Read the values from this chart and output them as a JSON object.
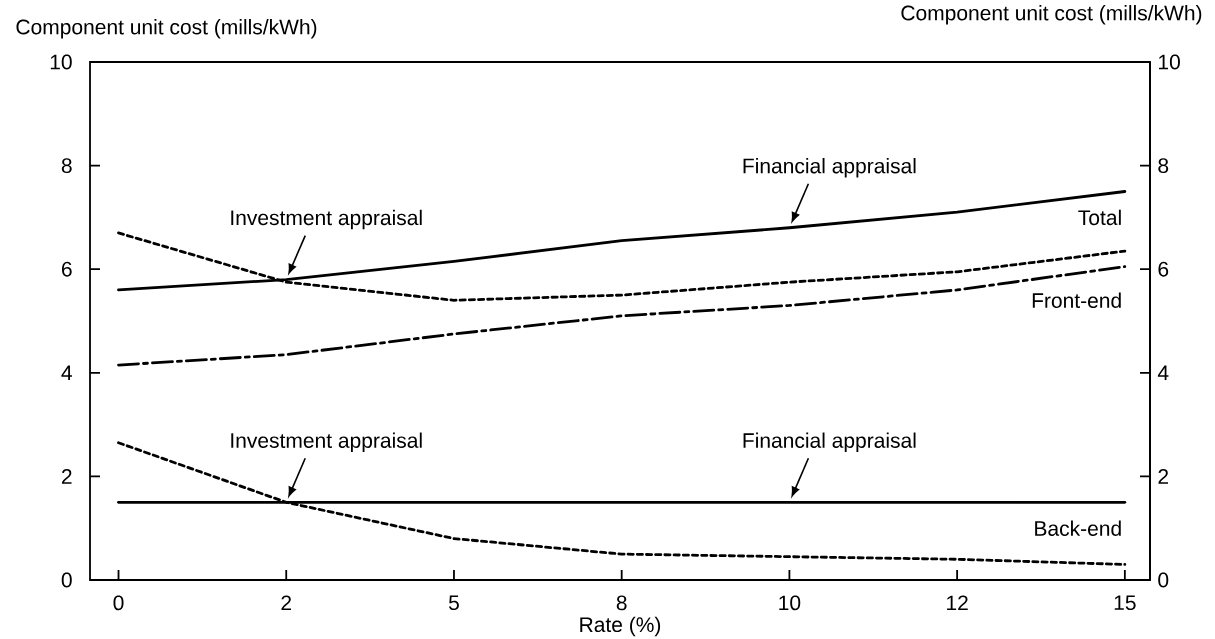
{
  "chart_data": {
    "type": "line",
    "categories": [
      "0",
      "2",
      "5",
      "8",
      "10",
      "12",
      "15"
    ],
    "xlabel": "Rate (%)",
    "ylabel": "Component unit cost (mills/kWh)",
    "y2label": "Component unit cost (mills/kWh)",
    "ylim": [
      0,
      10
    ],
    "yticks": [
      0,
      2,
      4,
      6,
      8,
      10
    ],
    "y2lim": [
      0,
      10
    ],
    "y2ticks": [
      0,
      2,
      4,
      6,
      8,
      10
    ],
    "series": [
      {
        "color": "#000000",
        "line_style": "solid",
        "values": [
          5.6,
          5.8,
          6.15,
          6.55,
          6.8,
          7.1,
          7.5
        ]
      },
      {
        "color": "#000000",
        "line_style": "dotted",
        "values": [
          6.7,
          5.75,
          5.4,
          5.5,
          5.75,
          5.95,
          6.35
        ]
      },
      {
        "color": "#000000",
        "line_style": "dashdot",
        "values": [
          4.15,
          4.35,
          4.75,
          5.1,
          5.3,
          5.6,
          6.05
        ]
      },
      {
        "color": "#000000",
        "line_style": "solid",
        "values": [
          1.5,
          1.5,
          1.5,
          1.5,
          1.5,
          1.5,
          1.5
        ]
      },
      {
        "color": "#000000",
        "line_style": "dotted",
        "values": [
          2.65,
          1.5,
          0.8,
          0.5,
          0.45,
          0.4,
          0.3
        ]
      }
    ],
    "annotations": [
      {
        "text": "Investment appraisal",
        "x": "2",
        "y": 5.8
      },
      {
        "text": "Financial appraisal",
        "x": "10",
        "y": 6.8
      },
      "Total",
      "Front-end",
      {
        "text": "Investment appraisal",
        "x": "2",
        "y": 1.5
      },
      {
        "text": "Financial appraisal",
        "x": "10",
        "y": 1.5
      },
      "Back-end"
    ]
  }
}
